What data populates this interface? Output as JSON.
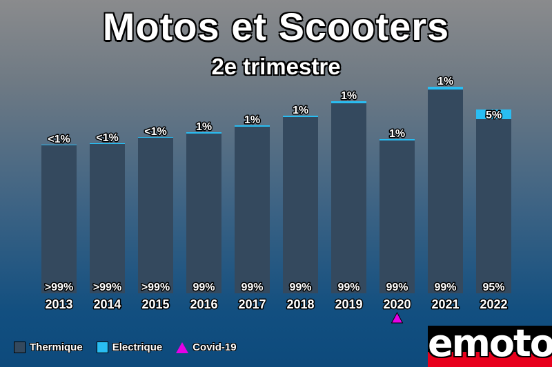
{
  "title": "Motos et Scooters",
  "subtitle": "2e trimestre",
  "legend": {
    "thermique": "Thermique",
    "electrique": "Electrique",
    "covid": "Covid-19"
  },
  "logo": "emoto",
  "colors": {
    "thermique": "#34495e",
    "electrique": "#29bdf2",
    "covid": "#e600e6",
    "text": "#ffffff"
  },
  "chart_data": {
    "type": "bar",
    "stacked": true,
    "title": "Motos et Scooters",
    "subtitle": "2e trimestre",
    "categories": [
      "2013",
      "2014",
      "2015",
      "2016",
      "2017",
      "2018",
      "2019",
      "2020",
      "2021",
      "2022"
    ],
    "series": [
      {
        "name": "Thermique",
        "values": [
          215,
          217,
          226,
          232,
          242,
          256,
          276,
          222,
          296,
          253
        ],
        "labels": [
          ">99%",
          ">99%",
          ">99%",
          "99%",
          "99%",
          "99%",
          "99%",
          "99%",
          "99%",
          "95%"
        ]
      },
      {
        "name": "Electrique",
        "values": [
          1,
          1,
          1,
          2,
          2,
          2,
          3,
          2,
          4,
          14
        ],
        "labels": [
          "<1%",
          "<1%",
          "<1%",
          "1%",
          "1%",
          "1%",
          "1%",
          "1%",
          "1%",
          "5%"
        ]
      }
    ],
    "annotations": [
      {
        "category": "2020",
        "marker": "triangle",
        "legend": "Covid-19"
      }
    ],
    "ylim": [
      0,
      320
    ],
    "grid": false,
    "yaxis_visible": false,
    "legend_position": "bottom-left"
  }
}
